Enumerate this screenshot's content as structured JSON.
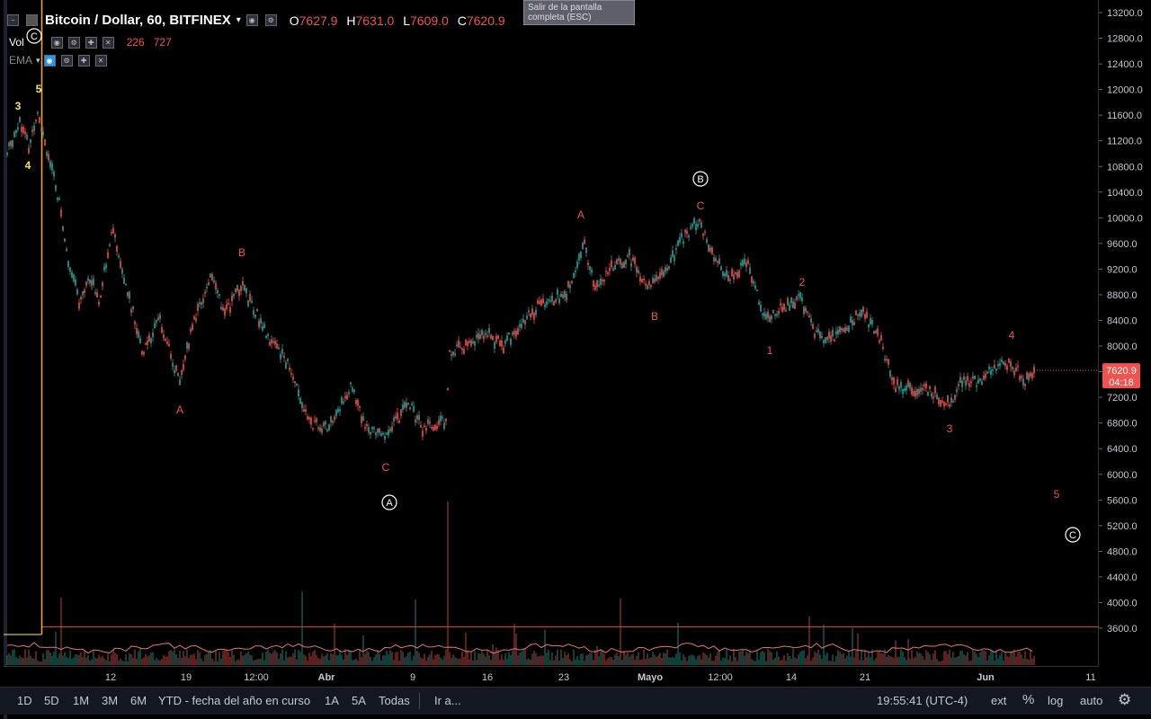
{
  "legend": {
    "symbol": "Bitcoin / Dollar, 60, BITFINEX",
    "open_label": "O",
    "open": "7627.9",
    "high_label": "H",
    "high": "7631.0",
    "low_label": "L",
    "low": "7609.0",
    "close_label": "C",
    "close": "7620.9"
  },
  "vol_row": {
    "label": "Vol",
    "v1": "226",
    "v2": "727"
  },
  "ema_row": {
    "label": "EMA"
  },
  "tooltip": "Salir de la pantalla completa (ESC)",
  "price_axis": {
    "ticks": [
      "13200.0",
      "12800.0",
      "12400.0",
      "12000.0",
      "11600.0",
      "11200.0",
      "10800.0",
      "10400.0",
      "10000.0",
      "9600.0",
      "9200.0",
      "8800.0",
      "8400.0",
      "8000.0",
      "7600.0",
      "7200.0",
      "6800.0",
      "6400.0",
      "6000.0",
      "5600.0",
      "5200.0",
      "4800.0",
      "4400.0",
      "4000.0",
      "3600.0"
    ],
    "last_price": "7620.9",
    "countdown": "04:18",
    "last_price_color": "#ef5350"
  },
  "time_axis": {
    "ticks": [
      "12",
      "19",
      "12:00",
      "Abr",
      "9",
      "16",
      "23",
      "Mayo",
      "12:00",
      "14",
      "21",
      "Jun",
      "11"
    ]
  },
  "wave_labels": {
    "yellow": [
      "3",
      "4",
      "5"
    ],
    "red": [
      "A",
      "B",
      "C",
      "A",
      "B",
      "C",
      "1",
      "2",
      "3",
      "4",
      "5"
    ],
    "circled": [
      "C",
      "A",
      "B",
      "C"
    ]
  },
  "bottom_bar": {
    "timeframes": [
      "1D",
      "5D",
      "1M",
      "3M",
      "6M",
      "YTD - fecha del año en curso",
      "1A",
      "5A",
      "Todas"
    ],
    "goto": "Ir a...",
    "clock": "19:55:41 (UTC-4)",
    "ext": "ext",
    "pct": "%",
    "log": "log",
    "auto": "auto"
  },
  "colors": {
    "up": "#26a69a",
    "down": "#ef5350",
    "wave_yellow": "#f5e663",
    "horizontal_line": "#e53935",
    "vertical_line": "#ffa726"
  }
}
